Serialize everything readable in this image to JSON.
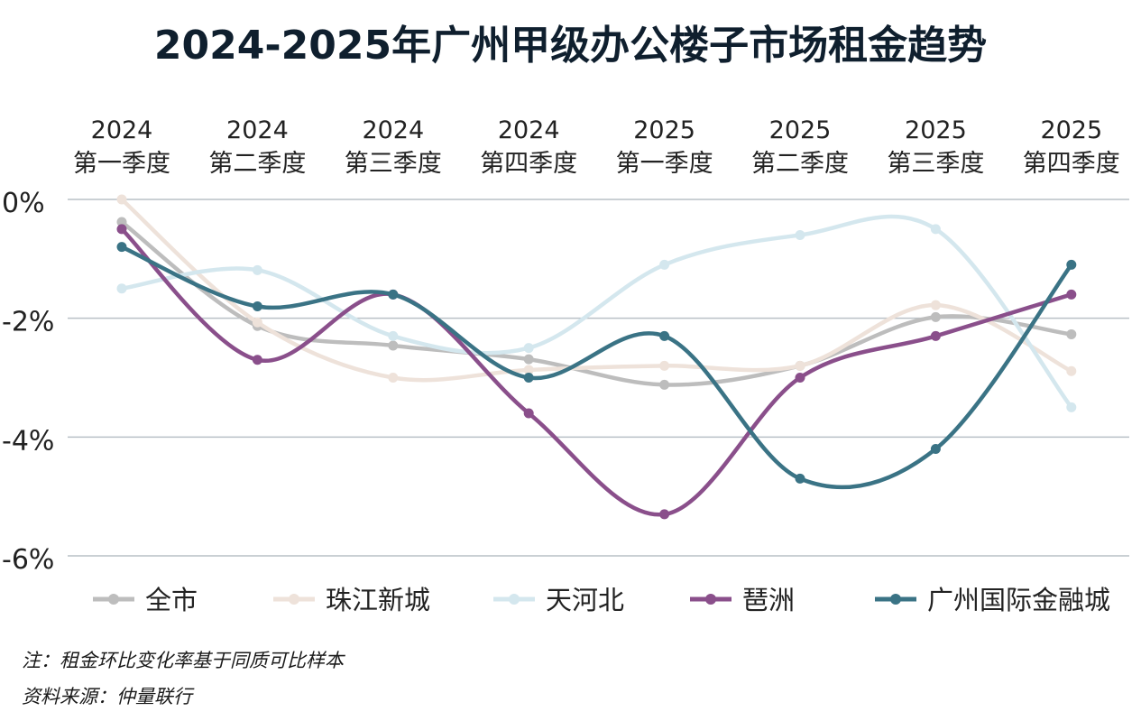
{
  "title": "2024-2025年广州甲级办公楼子市场租金趋势",
  "notes": [
    "注：租金环比变化率基于同质可比样本",
    "资料来源：仲量联行"
  ],
  "chart_data": {
    "type": "line",
    "title": "2024-2025年广州甲级办公楼子市场租金趋势",
    "categories": [
      [
        "2024",
        "第一季度"
      ],
      [
        "2024",
        "第二季度"
      ],
      [
        "2024",
        "第三季度"
      ],
      [
        "2024",
        "第四季度"
      ],
      [
        "2025",
        "第一季度"
      ],
      [
        "2025",
        "第二季度"
      ],
      [
        "2025",
        "第三季度"
      ],
      [
        "2025",
        "第四季度"
      ]
    ],
    "x_axis_position": "top",
    "ylim": [
      -6,
      0
    ],
    "yticks": [
      0,
      -2,
      -4,
      -6
    ],
    "ytick_labels": [
      "0%",
      "-2%",
      "-4%",
      "-6%"
    ],
    "grid": true,
    "legend": "bottom",
    "series": [
      {
        "name": "全市",
        "color": "#bdbdbd",
        "values": [
          -0.38,
          -2.13,
          -2.46,
          -2.69,
          -3.12,
          -2.8,
          -1.98,
          -2.27
        ]
      },
      {
        "name": "珠江新城",
        "color": "#eee2da",
        "values": [
          0.0,
          -2.07,
          -3.0,
          -2.87,
          -2.8,
          -2.8,
          -1.78,
          -2.89
        ]
      },
      {
        "name": "天河北",
        "color": "#d4e7ee",
        "values": [
          -1.5,
          -1.19,
          -2.3,
          -2.5,
          -1.1,
          -0.6,
          -0.5,
          -3.5
        ]
      },
      {
        "name": "琶洲",
        "color": "#8a4f8b",
        "values": [
          -0.5,
          -2.7,
          -1.6,
          -3.6,
          -5.3,
          -3.0,
          -2.3,
          -1.6
        ]
      },
      {
        "name": "广州国际金融城",
        "color": "#3a7385",
        "values": [
          -0.8,
          -1.8,
          -1.6,
          -3.0,
          -2.3,
          -4.7,
          -4.2,
          -1.1
        ]
      }
    ]
  }
}
